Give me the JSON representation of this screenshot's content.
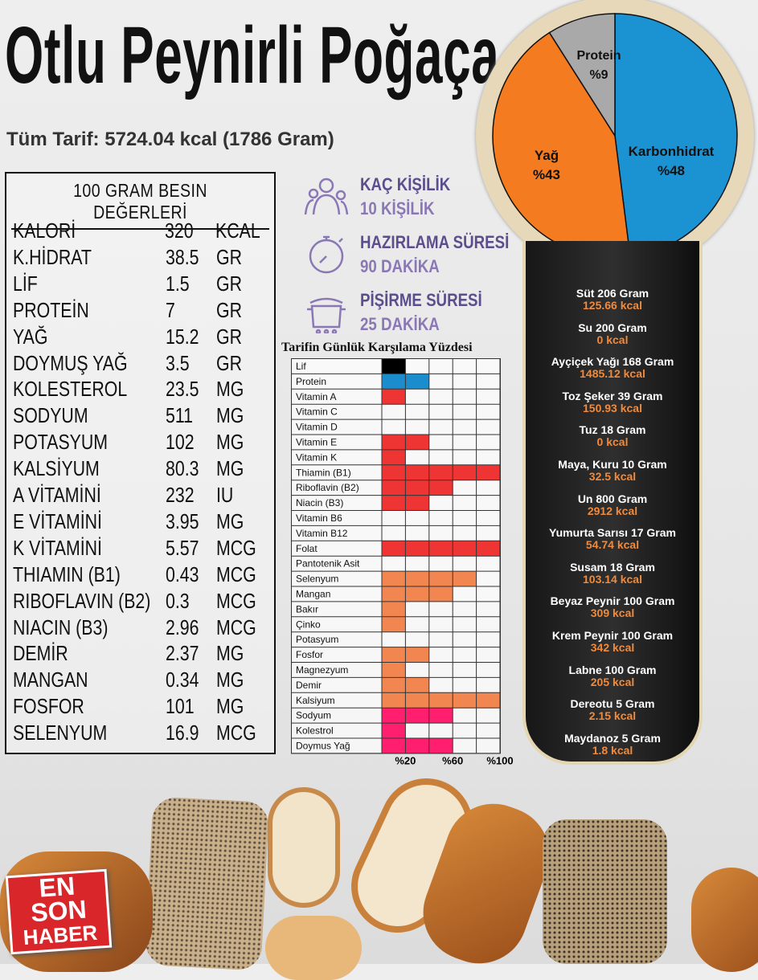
{
  "title": "Otlu Peynirli Poğaça",
  "subtitle": "Tüm Tarif: 5724.04 kcal (1786 Gram)",
  "nutrition": {
    "header": "100 GRAM BESIN DEĞERLERİ",
    "rows": [
      {
        "name": "KALORİ",
        "value": "320",
        "unit": "KCAL"
      },
      {
        "name": "K.HİDRAT",
        "value": "38.5",
        "unit": "GR"
      },
      {
        "name": "LİF",
        "value": "1.5",
        "unit": "GR"
      },
      {
        "name": "PROTEİN",
        "value": "7",
        "unit": "GR"
      },
      {
        "name": "YAĞ",
        "value": "15.2",
        "unit": "GR"
      },
      {
        "name": "DOYMUŞ YAĞ",
        "value": "3.5",
        "unit": "GR"
      },
      {
        "name": "KOLESTEROL",
        "value": "23.5",
        "unit": "MG"
      },
      {
        "name": "SODYUM",
        "value": "511",
        "unit": "MG"
      },
      {
        "name": "POTASYUM",
        "value": "102",
        "unit": "MG"
      },
      {
        "name": "KALSİYUM",
        "value": "80.3",
        "unit": "MG"
      },
      {
        "name": "A VİTAMİNİ",
        "value": "232",
        "unit": "IU"
      },
      {
        "name": "E VİTAMİNİ",
        "value": "3.95",
        "unit": "MG"
      },
      {
        "name": "K VİTAMİNİ",
        "value": "5.57",
        "unit": "MCG"
      },
      {
        "name": "THIAMIN (B1)",
        "value": "0.43",
        "unit": "MCG"
      },
      {
        "name": "RIBOFLAVIN (B2)",
        "value": "0.3",
        "unit": "MCG"
      },
      {
        "name": "NIACIN (B3)",
        "value": "2.96",
        "unit": "MCG"
      },
      {
        "name": "DEMİR",
        "value": "2.37",
        "unit": "MG"
      },
      {
        "name": "MANGAN",
        "value": "0.34",
        "unit": "MG"
      },
      {
        "name": "FOSFOR",
        "value": "101",
        "unit": "MG"
      },
      {
        "name": "SELENYUM",
        "value": "16.9",
        "unit": "MCG"
      }
    ]
  },
  "info": [
    {
      "icon": "people-icon",
      "label": "KAÇ KİŞİLİK",
      "value": "10 KİŞİLİK"
    },
    {
      "icon": "stopwatch-icon",
      "label": "HAZIRLAMA SÜRESİ",
      "value": "90 DAKİKA"
    },
    {
      "icon": "pot-icon",
      "label": "PİŞİRME SÜRESİ",
      "value": "25 DAKİKA"
    }
  ],
  "ingredients": [
    {
      "name": "Süt 206 Gram",
      "kcal": "125.66 kcal"
    },
    {
      "name": "Su 200 Gram",
      "kcal": "0 kcal"
    },
    {
      "name": "Ayçiçek Yağı 168 Gram",
      "kcal": "1485.12 kcal"
    },
    {
      "name": "Toz Şeker 39 Gram",
      "kcal": "150.93 kcal"
    },
    {
      "name": "Tuz 18 Gram",
      "kcal": "0 kcal"
    },
    {
      "name": "Maya, Kuru 10 Gram",
      "kcal": "32.5 kcal"
    },
    {
      "name": "Un 800 Gram",
      "kcal": "2912 kcal"
    },
    {
      "name": "Yumurta Sarısı 17 Gram",
      "kcal": "54.74 kcal"
    },
    {
      "name": "Susam 18 Gram",
      "kcal": "103.14 kcal"
    },
    {
      "name": "Beyaz Peynir 100 Gram",
      "kcal": "309 kcal"
    },
    {
      "name": "Krem Peynir 100 Gram",
      "kcal": "342 kcal"
    },
    {
      "name": "Labne 100 Gram",
      "kcal": "205 kcal"
    },
    {
      "name": "Dereotu 5 Gram",
      "kcal": "2.15 kcal"
    },
    {
      "name": "Maydanoz 5 Gram",
      "kcal": "1.8 kcal"
    }
  ],
  "logo": {
    "line1": "EN",
    "line2": "SON",
    "line3": "HABER",
    "color": "#d8262b"
  },
  "chart_data": [
    {
      "type": "pie",
      "slices": [
        {
          "name": "Karbonhidrat",
          "label": "%48",
          "value": 48,
          "color": "#1b93d3"
        },
        {
          "name": "Yağ",
          "label": "%43",
          "value": 43,
          "color": "#f47b20"
        },
        {
          "name": "Protein",
          "label": "%9",
          "value": 9,
          "color": "#a9a9a9"
        }
      ]
    },
    {
      "type": "bar",
      "title": "Tarifin Günlük Karşılama Yüzdesi",
      "orientation": "horizontal",
      "xlim": [
        0,
        100
      ],
      "tick_labels": [
        "%20",
        "%60",
        "%100"
      ],
      "grid": true,
      "categories": [
        "Lif",
        "Protein",
        "Vitamin A",
        "Vitamin C",
        "Vitamin D",
        "Vitamin E",
        "Vitamin K",
        "Thiamin (B1)",
        "Riboflavin (B2)",
        "Niacin (B3)",
        "Vitamin B6",
        "Vitamin B12",
        "Folat",
        "Pantotenik Asit",
        "Selenyum",
        "Mangan",
        "Bakır",
        "Çinko",
        "Potasyum",
        "Fosfor",
        "Magnezyum",
        "Demir",
        "Kalsiyum",
        "Sodyum",
        "Kolestrol",
        "Doymus Yağ"
      ],
      "values": [
        20,
        40,
        20,
        0,
        0,
        40,
        20,
        100,
        60,
        40,
        0,
        0,
        100,
        0,
        80,
        60,
        20,
        20,
        0,
        40,
        20,
        40,
        100,
        60,
        20,
        60
      ],
      "colors": [
        "#000000",
        "#1b8ccc",
        "#ef3434",
        "#ef3434",
        "#ef3434",
        "#ef3434",
        "#ef3434",
        "#ef3434",
        "#ef3434",
        "#ef3434",
        "#ef3434",
        "#ef3434",
        "#ef3434",
        "#f28650",
        "#f28650",
        "#f28650",
        "#f28650",
        "#f28650",
        "#f28650",
        "#f28650",
        "#f28650",
        "#f28650",
        "#f28650",
        "#ff1f6e",
        "#ff1f6e",
        "#ff1f6e"
      ]
    }
  ]
}
